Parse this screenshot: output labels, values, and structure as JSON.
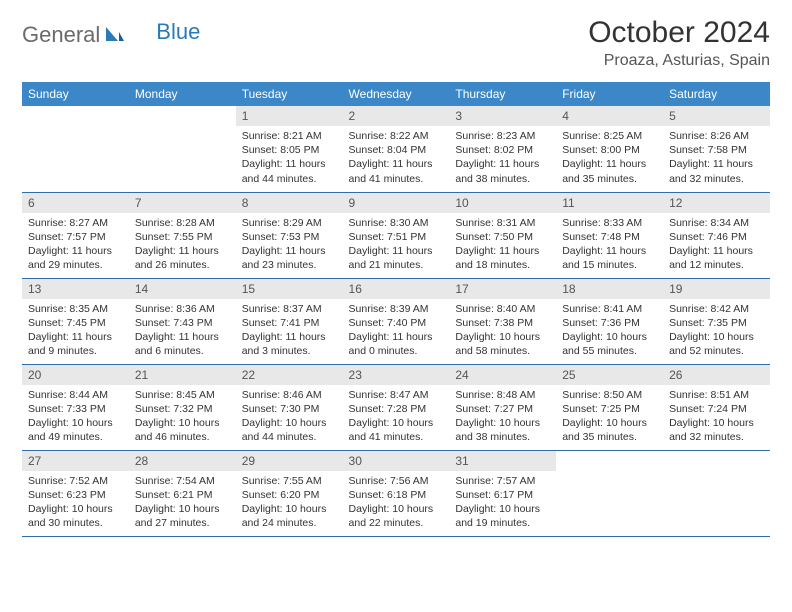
{
  "brand": {
    "general": "General",
    "blue": "Blue"
  },
  "title": "October 2024",
  "location": "Proaza, Asturias, Spain",
  "colors": {
    "header_bg": "#3b87c8",
    "header_text": "#ffffff",
    "daynum_bg": "#e8e8e8",
    "row_border": "#2f6fa8",
    "logo_gray": "#6b6b6b",
    "logo_blue": "#2a7ab8"
  },
  "weekdays": [
    "Sunday",
    "Monday",
    "Tuesday",
    "Wednesday",
    "Thursday",
    "Friday",
    "Saturday"
  ],
  "weeks": [
    [
      null,
      null,
      {
        "n": "1",
        "sunrise": "Sunrise: 8:21 AM",
        "sunset": "Sunset: 8:05 PM",
        "daylight": "Daylight: 11 hours and 44 minutes."
      },
      {
        "n": "2",
        "sunrise": "Sunrise: 8:22 AM",
        "sunset": "Sunset: 8:04 PM",
        "daylight": "Daylight: 11 hours and 41 minutes."
      },
      {
        "n": "3",
        "sunrise": "Sunrise: 8:23 AM",
        "sunset": "Sunset: 8:02 PM",
        "daylight": "Daylight: 11 hours and 38 minutes."
      },
      {
        "n": "4",
        "sunrise": "Sunrise: 8:25 AM",
        "sunset": "Sunset: 8:00 PM",
        "daylight": "Daylight: 11 hours and 35 minutes."
      },
      {
        "n": "5",
        "sunrise": "Sunrise: 8:26 AM",
        "sunset": "Sunset: 7:58 PM",
        "daylight": "Daylight: 11 hours and 32 minutes."
      }
    ],
    [
      {
        "n": "6",
        "sunrise": "Sunrise: 8:27 AM",
        "sunset": "Sunset: 7:57 PM",
        "daylight": "Daylight: 11 hours and 29 minutes."
      },
      {
        "n": "7",
        "sunrise": "Sunrise: 8:28 AM",
        "sunset": "Sunset: 7:55 PM",
        "daylight": "Daylight: 11 hours and 26 minutes."
      },
      {
        "n": "8",
        "sunrise": "Sunrise: 8:29 AM",
        "sunset": "Sunset: 7:53 PM",
        "daylight": "Daylight: 11 hours and 23 minutes."
      },
      {
        "n": "9",
        "sunrise": "Sunrise: 8:30 AM",
        "sunset": "Sunset: 7:51 PM",
        "daylight": "Daylight: 11 hours and 21 minutes."
      },
      {
        "n": "10",
        "sunrise": "Sunrise: 8:31 AM",
        "sunset": "Sunset: 7:50 PM",
        "daylight": "Daylight: 11 hours and 18 minutes."
      },
      {
        "n": "11",
        "sunrise": "Sunrise: 8:33 AM",
        "sunset": "Sunset: 7:48 PM",
        "daylight": "Daylight: 11 hours and 15 minutes."
      },
      {
        "n": "12",
        "sunrise": "Sunrise: 8:34 AM",
        "sunset": "Sunset: 7:46 PM",
        "daylight": "Daylight: 11 hours and 12 minutes."
      }
    ],
    [
      {
        "n": "13",
        "sunrise": "Sunrise: 8:35 AM",
        "sunset": "Sunset: 7:45 PM",
        "daylight": "Daylight: 11 hours and 9 minutes."
      },
      {
        "n": "14",
        "sunrise": "Sunrise: 8:36 AM",
        "sunset": "Sunset: 7:43 PM",
        "daylight": "Daylight: 11 hours and 6 minutes."
      },
      {
        "n": "15",
        "sunrise": "Sunrise: 8:37 AM",
        "sunset": "Sunset: 7:41 PM",
        "daylight": "Daylight: 11 hours and 3 minutes."
      },
      {
        "n": "16",
        "sunrise": "Sunrise: 8:39 AM",
        "sunset": "Sunset: 7:40 PM",
        "daylight": "Daylight: 11 hours and 0 minutes."
      },
      {
        "n": "17",
        "sunrise": "Sunrise: 8:40 AM",
        "sunset": "Sunset: 7:38 PM",
        "daylight": "Daylight: 10 hours and 58 minutes."
      },
      {
        "n": "18",
        "sunrise": "Sunrise: 8:41 AM",
        "sunset": "Sunset: 7:36 PM",
        "daylight": "Daylight: 10 hours and 55 minutes."
      },
      {
        "n": "19",
        "sunrise": "Sunrise: 8:42 AM",
        "sunset": "Sunset: 7:35 PM",
        "daylight": "Daylight: 10 hours and 52 minutes."
      }
    ],
    [
      {
        "n": "20",
        "sunrise": "Sunrise: 8:44 AM",
        "sunset": "Sunset: 7:33 PM",
        "daylight": "Daylight: 10 hours and 49 minutes."
      },
      {
        "n": "21",
        "sunrise": "Sunrise: 8:45 AM",
        "sunset": "Sunset: 7:32 PM",
        "daylight": "Daylight: 10 hours and 46 minutes."
      },
      {
        "n": "22",
        "sunrise": "Sunrise: 8:46 AM",
        "sunset": "Sunset: 7:30 PM",
        "daylight": "Daylight: 10 hours and 44 minutes."
      },
      {
        "n": "23",
        "sunrise": "Sunrise: 8:47 AM",
        "sunset": "Sunset: 7:28 PM",
        "daylight": "Daylight: 10 hours and 41 minutes."
      },
      {
        "n": "24",
        "sunrise": "Sunrise: 8:48 AM",
        "sunset": "Sunset: 7:27 PM",
        "daylight": "Daylight: 10 hours and 38 minutes."
      },
      {
        "n": "25",
        "sunrise": "Sunrise: 8:50 AM",
        "sunset": "Sunset: 7:25 PM",
        "daylight": "Daylight: 10 hours and 35 minutes."
      },
      {
        "n": "26",
        "sunrise": "Sunrise: 8:51 AM",
        "sunset": "Sunset: 7:24 PM",
        "daylight": "Daylight: 10 hours and 32 minutes."
      }
    ],
    [
      {
        "n": "27",
        "sunrise": "Sunrise: 7:52 AM",
        "sunset": "Sunset: 6:23 PM",
        "daylight": "Daylight: 10 hours and 30 minutes."
      },
      {
        "n": "28",
        "sunrise": "Sunrise: 7:54 AM",
        "sunset": "Sunset: 6:21 PM",
        "daylight": "Daylight: 10 hours and 27 minutes."
      },
      {
        "n": "29",
        "sunrise": "Sunrise: 7:55 AM",
        "sunset": "Sunset: 6:20 PM",
        "daylight": "Daylight: 10 hours and 24 minutes."
      },
      {
        "n": "30",
        "sunrise": "Sunrise: 7:56 AM",
        "sunset": "Sunset: 6:18 PM",
        "daylight": "Daylight: 10 hours and 22 minutes."
      },
      {
        "n": "31",
        "sunrise": "Sunrise: 7:57 AM",
        "sunset": "Sunset: 6:17 PM",
        "daylight": "Daylight: 10 hours and 19 minutes."
      },
      null,
      null
    ]
  ]
}
